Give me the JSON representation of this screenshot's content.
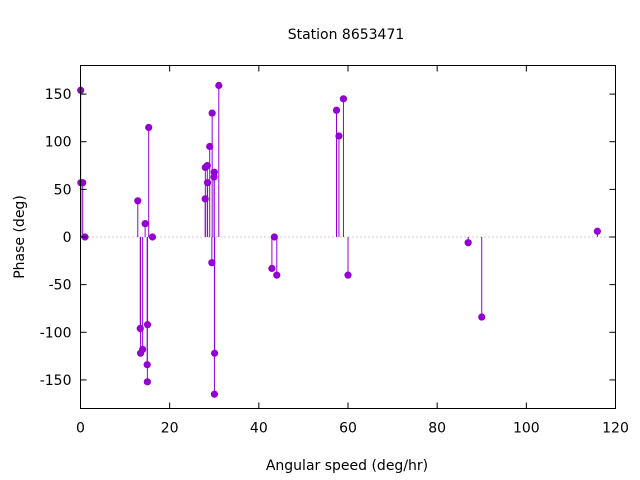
{
  "chart_data": {
    "type": "scatter",
    "style": "impulses-with-points",
    "title": "Station 8653471",
    "xlabel": "Angular speed (deg/hr)",
    "ylabel": "Phase (deg)",
    "xlim": [
      0,
      120
    ],
    "ylim": [
      -180,
      180
    ],
    "xticks": [
      0,
      20,
      40,
      60,
      80,
      100,
      120
    ],
    "yticks": [
      -150,
      -100,
      -50,
      0,
      50,
      100,
      150
    ],
    "zero_line": true,
    "grid": false,
    "color": "#9400d3",
    "series": [
      {
        "points": [
          [
            0.04,
            154
          ],
          [
            0.08,
            57
          ],
          [
            0.5,
            57
          ],
          [
            1.0,
            0
          ],
          [
            12.85,
            38
          ],
          [
            13.4,
            -96
          ],
          [
            13.47,
            -122
          ],
          [
            13.94,
            -118
          ],
          [
            14.5,
            14
          ],
          [
            14.96,
            -134
          ],
          [
            15.0,
            -152
          ],
          [
            15.04,
            -92
          ],
          [
            15.3,
            115
          ],
          [
            16.14,
            0
          ],
          [
            27.97,
            40
          ],
          [
            28.0,
            73
          ],
          [
            28.44,
            75
          ],
          [
            28.5,
            57
          ],
          [
            28.98,
            95
          ],
          [
            29.46,
            -27
          ],
          [
            29.53,
            130
          ],
          [
            29.96,
            63
          ],
          [
            30.0,
            68
          ],
          [
            30.04,
            -165
          ],
          [
            30.08,
            -122
          ],
          [
            31.02,
            159
          ],
          [
            42.93,
            -33
          ],
          [
            43.48,
            0
          ],
          [
            44.03,
            -40
          ],
          [
            57.42,
            133
          ],
          [
            57.97,
            106
          ],
          [
            58.98,
            145
          ],
          [
            60.0,
            -40
          ],
          [
            86.95,
            -6
          ],
          [
            90.0,
            -84
          ],
          [
            115.94,
            6
          ]
        ]
      }
    ]
  }
}
